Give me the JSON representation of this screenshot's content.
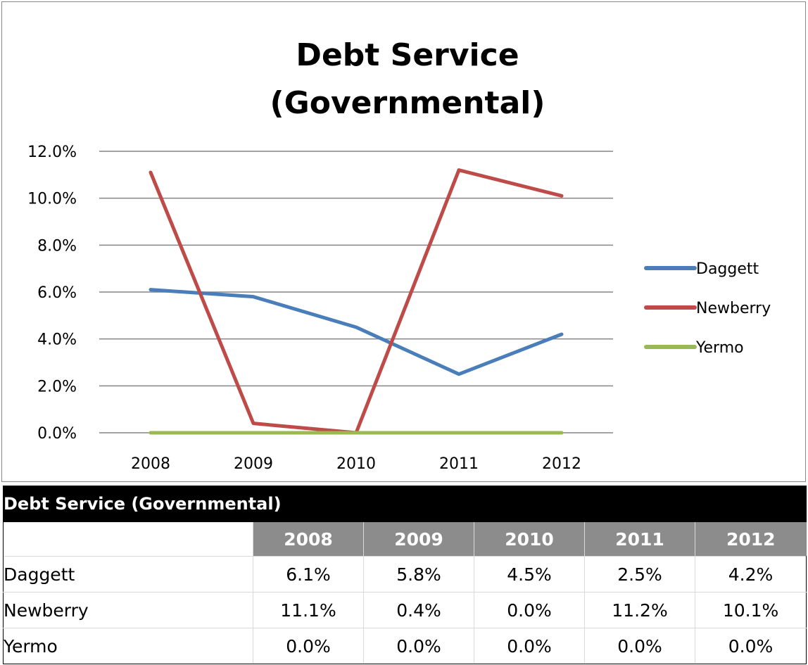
{
  "chart_data": {
    "type": "line",
    "title_lines": [
      "Debt Service",
      "(Governmental)"
    ],
    "categories": [
      "2008",
      "2009",
      "2010",
      "2011",
      "2012"
    ],
    "y_ticks": [
      "0.0%",
      "2.0%",
      "4.0%",
      "6.0%",
      "8.0%",
      "10.0%",
      "12.0%"
    ],
    "ylim": [
      0,
      12
    ],
    "grid": true,
    "legend_position": "right",
    "series": [
      {
        "name": "Daggett",
        "color": "#4a7ebb",
        "values": [
          6.1,
          5.8,
          4.5,
          2.5,
          4.2
        ]
      },
      {
        "name": "Newberry",
        "color": "#be4b48",
        "values": [
          11.1,
          0.4,
          0.0,
          11.2,
          10.1
        ]
      },
      {
        "name": "Yermo",
        "color": "#98b954",
        "values": [
          0.0,
          0.0,
          0.0,
          0.0,
          0.0
        ]
      }
    ]
  },
  "table": {
    "title": "Debt Service (Governmental)",
    "years": [
      "2008",
      "2009",
      "2010",
      "2011",
      "2012"
    ],
    "rows": [
      {
        "name": "Daggett",
        "values": [
          "6.1%",
          "5.8%",
          "4.5%",
          "2.5%",
          "4.2%"
        ]
      },
      {
        "name": "Newberry",
        "values": [
          "11.1%",
          "0.4%",
          "0.0%",
          "11.2%",
          "10.1%"
        ]
      },
      {
        "name": "Yermo",
        "values": [
          "0.0%",
          "0.0%",
          "0.0%",
          "0.0%",
          "0.0%"
        ]
      }
    ]
  }
}
